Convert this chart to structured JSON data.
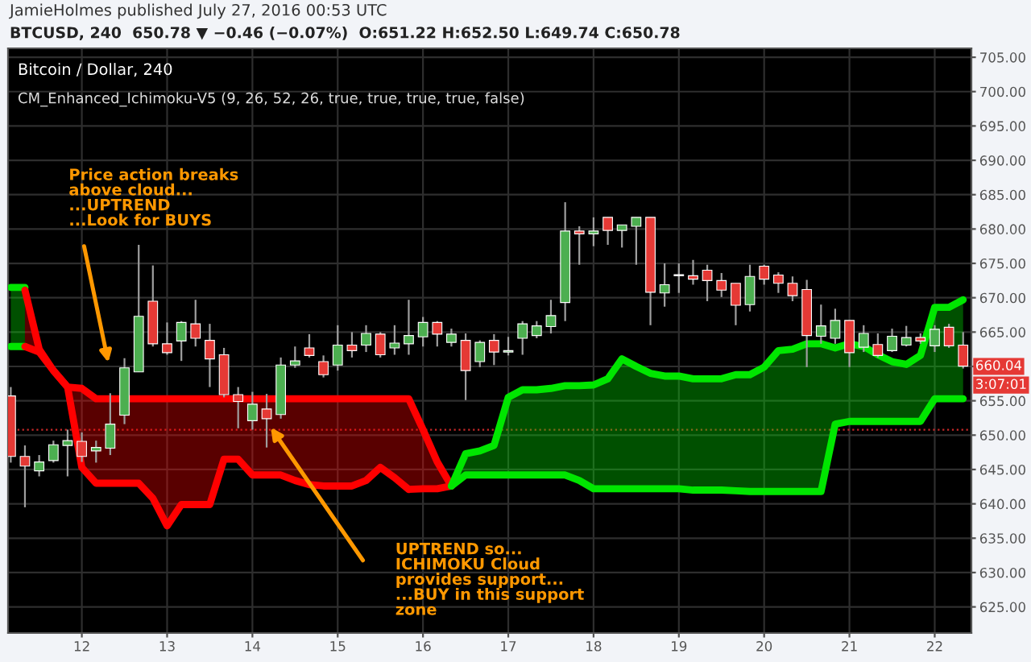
{
  "chart_data": {
    "type": "candlestick",
    "title": "Bitcoin / Dollar, 240",
    "subtitle": "CM_Enhanced_Ichimoku-V5 (9, 26, 52, 26, true, true, true, true, false)",
    "x": [
      11.167,
      11.333,
      11.5,
      11.667,
      11.833,
      12,
      12.167,
      12.333,
      12.5,
      12.667,
      12.833,
      13,
      13.167,
      13.333,
      13.5,
      13.667,
      13.833,
      14,
      14.167,
      14.333,
      14.5,
      14.667,
      14.833,
      15,
      15.167,
      15.333,
      15.5,
      15.667,
      15.833,
      16,
      16.167,
      16.333,
      16.5,
      16.667,
      16.833,
      17,
      17.167,
      17.333,
      17.5,
      17.667,
      17.833,
      18,
      18.167,
      18.333,
      18.5,
      18.667,
      18.833,
      19,
      19.167,
      19.333,
      19.5,
      19.667,
      19.833,
      20,
      20.167,
      20.333,
      20.5,
      20.667,
      20.833,
      21,
      21.167,
      21.333,
      21.5,
      21.667,
      21.833,
      22,
      22.167,
      22.333
    ],
    "ohlc": [
      [
        655.7,
        657.0,
        646.0,
        646.9
      ],
      [
        646.9,
        648.5,
        639.5,
        645.5
      ],
      [
        644.8,
        647.1,
        644.0,
        646.1
      ],
      [
        646.3,
        649.2,
        646.0,
        648.6
      ],
      [
        648.5,
        650.8,
        644.0,
        649.2
      ],
      [
        649.1,
        650.4,
        646.1,
        646.9
      ],
      [
        647.7,
        649.2,
        646.0,
        648.2
      ],
      [
        648.1,
        656.1,
        647.1,
        651.6
      ],
      [
        652.9,
        661.2,
        651.6,
        659.8
      ],
      [
        659.2,
        677.7,
        659.2,
        667.3
      ],
      [
        669.5,
        674.7,
        662.9,
        663.3
      ],
      [
        663.3,
        666.4,
        661.7,
        662.0
      ],
      [
        663.7,
        666.6,
        660.8,
        666.4
      ],
      [
        666.2,
        669.7,
        662.9,
        664.1
      ],
      [
        663.8,
        666.2,
        657.0,
        661.1
      ],
      [
        661.7,
        662.7,
        655.5,
        655.9
      ],
      [
        655.9,
        657.0,
        651.0,
        654.9
      ],
      [
        652.1,
        656.3,
        650.8,
        654.5
      ],
      [
        653.8,
        656.0,
        648.2,
        652.4
      ],
      [
        653.0,
        661.3,
        652.4,
        660.2
      ],
      [
        660.2,
        662.9,
        659.8,
        660.8
      ],
      [
        662.7,
        664.7,
        661.3,
        661.6
      ],
      [
        660.7,
        661.6,
        658.4,
        658.8
      ],
      [
        660.2,
        666.0,
        659.4,
        663.1
      ],
      [
        663.1,
        665.0,
        661.3,
        662.3
      ],
      [
        663.1,
        666.0,
        662.1,
        664.8
      ],
      [
        664.7,
        665.0,
        661.3,
        661.7
      ],
      [
        662.7,
        666.0,
        661.7,
        663.4
      ],
      [
        663.3,
        669.7,
        661.7,
        664.5
      ],
      [
        664.3,
        667.2,
        662.9,
        666.4
      ],
      [
        666.4,
        666.6,
        662.9,
        664.7
      ],
      [
        663.5,
        665.5,
        662.9,
        664.7
      ],
      [
        663.8,
        664.8,
        655.1,
        659.4
      ],
      [
        660.7,
        663.8,
        659.9,
        663.5
      ],
      [
        663.8,
        664.7,
        660.2,
        662.1
      ],
      [
        662.1,
        664.3,
        661.6,
        662.3
      ],
      [
        664.1,
        666.6,
        661.7,
        666.2
      ],
      [
        664.5,
        666.6,
        664.1,
        665.9
      ],
      [
        665.8,
        669.7,
        664.8,
        667.4
      ],
      [
        669.3,
        683.9,
        666.6,
        679.7
      ],
      [
        679.7,
        680.4,
        674.8,
        679.3
      ],
      [
        679.3,
        681.7,
        677.5,
        679.7
      ],
      [
        681.7,
        681.7,
        677.7,
        679.8
      ],
      [
        679.8,
        680.6,
        677.3,
        680.6
      ],
      [
        680.4,
        681.7,
        674.8,
        681.7
      ],
      [
        681.7,
        681.7,
        666.0,
        670.8
      ],
      [
        670.7,
        675.0,
        668.7,
        671.9
      ],
      [
        673.2,
        675.0,
        670.7,
        673.3
      ],
      [
        673.2,
        675.5,
        671.9,
        672.7
      ],
      [
        674.0,
        674.8,
        669.5,
        672.5
      ],
      [
        672.5,
        673.6,
        670.1,
        671.1
      ],
      [
        672.1,
        672.1,
        666.0,
        668.9
      ],
      [
        669.0,
        674.8,
        668.0,
        673.1
      ],
      [
        674.6,
        674.8,
        671.9,
        672.7
      ],
      [
        673.3,
        673.7,
        670.7,
        672.1
      ],
      [
        672.1,
        673.1,
        669.5,
        670.3
      ],
      [
        671.2,
        672.6,
        659.9,
        664.5
      ],
      [
        664.4,
        669.0,
        663.3,
        665.9
      ],
      [
        664.1,
        668.4,
        663.3,
        666.7
      ],
      [
        666.7,
        666.7,
        659.9,
        662.0
      ],
      [
        662.8,
        666.0,
        662.1,
        664.8
      ],
      [
        663.2,
        664.8,
        661.3,
        661.6
      ],
      [
        662.3,
        665.5,
        662.1,
        664.4
      ],
      [
        663.1,
        665.9,
        662.9,
        664.2
      ],
      [
        664.2,
        664.8,
        663.3,
        663.7
      ],
      [
        663.0,
        666.0,
        662.1,
        665.4
      ],
      [
        665.7,
        666.2,
        662.7,
        663.0
      ],
      [
        663.1,
        665.0,
        659.7,
        660.04
      ]
    ],
    "colors": [
      "#e53935",
      "#e53935",
      "#4caf50",
      "#4caf50",
      "#4caf50",
      "#e53935",
      "#4caf50",
      "#4caf50",
      "#4caf50",
      "#4caf50",
      "#e53935",
      "#e53935",
      "#4caf50",
      "#e53935",
      "#e53935",
      "#e53935",
      "#e53935",
      "#4caf50",
      "#e53935",
      "#4caf50",
      "#4caf50",
      "#e53935",
      "#e53935",
      "#4caf50",
      "#e53935",
      "#4caf50",
      "#e53935",
      "#4caf50",
      "#4caf50",
      "#4caf50",
      "#e53935",
      "#4caf50",
      "#e53935",
      "#4caf50",
      "#e53935",
      "#4caf50",
      "#4caf50",
      "#4caf50",
      "#4caf50",
      "#4caf50",
      "#e53935",
      "#4caf50",
      "#e53935",
      "#4caf50",
      "#4caf50",
      "#e53935",
      "#4caf50",
      "#4caf50",
      "#e53935",
      "#e53935",
      "#e53935",
      "#e53935",
      "#4caf50",
      "#e53935",
      "#e53935",
      "#e53935",
      "#e53935",
      "#4caf50",
      "#4caf50",
      "#e53935",
      "#4caf50",
      "#e53935",
      "#4caf50",
      "#4caf50",
      "#e53935",
      "#4caf50",
      "#e53935",
      "#e53935"
    ],
    "series": [
      {
        "type": "line",
        "color": "#00e600",
        "x": [
          11.167,
          11.333
        ],
        "values": [
          671.5,
          671.5
        ],
        "lower": [
          662.9,
          662.9
        ],
        "upper": [
          671.5,
          671.5
        ]
      },
      {
        "type": "line",
        "color": "#ff0000",
        "x": [
          11.333,
          11.5,
          11.667,
          11.833,
          12,
          12.167,
          12.333,
          12.5,
          12.667,
          12.833,
          13,
          13.167,
          13.333,
          13.5,
          13.667,
          13.833,
          14,
          14.167,
          14.333,
          14.5,
          14.667,
          14.833,
          15,
          15.167,
          15.333,
          15.5,
          15.667,
          15.833,
          16,
          16.167,
          16.333
        ],
        "values": [
          671.1,
          662.5,
          659.4,
          657.0,
          656.8,
          655.3,
          655.3,
          655.3,
          655.3,
          655.3,
          655.3,
          655.3,
          655.3,
          655.3,
          655.3,
          655.3,
          655.3,
          655.3,
          655.3,
          655.3,
          655.3,
          655.3,
          655.3,
          655.3,
          655.3,
          655.3,
          655.3,
          655.3,
          650.8,
          646.1,
          642.6
        ],
        "lower": [
          662.9,
          662.1,
          659.4,
          657.0,
          645.3,
          643.0,
          643.0,
          643.0,
          643.0,
          640.8,
          636.8,
          639.9,
          639.9,
          639.9,
          646.5,
          646.5,
          644.2,
          644.2,
          644.2,
          643.4,
          642.8,
          642.6,
          642.6,
          642.6,
          643.4,
          645.3,
          643.8,
          642.1,
          642.2,
          642.2,
          642.6
        ],
        "upper": [
          671.1,
          662.5,
          659.4,
          657.0,
          656.8,
          655.3,
          655.3,
          655.3,
          655.3,
          655.3,
          655.3,
          655.3,
          655.3,
          655.3,
          655.3,
          655.3,
          655.3,
          655.3,
          655.3,
          655.3,
          655.3,
          655.3,
          655.3,
          655.3,
          655.3,
          655.3,
          655.3,
          655.3,
          650.8,
          646.1,
          642.6
        ]
      },
      {
        "type": "line",
        "color": "#00e600",
        "x": [
          11.167,
          11.333
        ],
        "values": [
          662.9,
          662.9
        ]
      },
      {
        "type": "line",
        "color": "#ff0000",
        "x": [
          11.333,
          11.5,
          11.667,
          11.833,
          12,
          12.167,
          12.333,
          12.5,
          12.667,
          12.833,
          13,
          13.167,
          13.333,
          13.5,
          13.667,
          13.833,
          14,
          14.167,
          14.333,
          14.5,
          14.667,
          14.833,
          15,
          15.167,
          15.333,
          15.5,
          15.667,
          15.833,
          16,
          16.167,
          16.333
        ],
        "values": [
          662.9,
          662.1,
          659.4,
          657.0,
          645.3,
          643.0,
          643.0,
          643.0,
          643.0,
          640.8,
          636.8,
          639.9,
          639.9,
          639.9,
          646.5,
          646.5,
          644.2,
          644.2,
          644.2,
          643.4,
          642.8,
          642.6,
          642.6,
          642.6,
          643.4,
          645.3,
          643.8,
          642.1,
          642.2,
          642.2,
          642.6
        ]
      },
      {
        "type": "line",
        "color": "#00e600",
        "x": [
          16.333,
          16.5,
          16.667,
          16.833,
          17,
          17.167,
          17.333,
          17.5,
          17.667,
          17.833,
          18,
          18.167,
          18.333,
          18.5,
          18.667,
          18.833,
          19,
          19.167,
          19.333,
          19.5,
          19.667,
          19.833,
          20,
          20.167,
          20.333,
          20.5,
          20.667,
          20.833,
          21,
          21.167,
          21.333,
          21.5,
          21.667,
          21.833,
          22,
          22.167,
          22.333
        ],
        "values": [
          642.6,
          644.2,
          644.2,
          644.2,
          644.2,
          644.2,
          644.2,
          644.2,
          644.2,
          643.4,
          642.2,
          642.2,
          642.2,
          642.2,
          642.2,
          642.2,
          642.2,
          642.0,
          642.0,
          642.0,
          641.9,
          641.8,
          641.8,
          641.8,
          641.8,
          641.8,
          641.8,
          651.6,
          652.0,
          652.0,
          652.0,
          652.0,
          652.0,
          652.0,
          655.3,
          655.3,
          655.3
        ]
      },
      {
        "type": "line",
        "color": "#00e600",
        "x": [
          16.333,
          16.5,
          16.667,
          16.833,
          17,
          17.167,
          17.333,
          17.5,
          17.667,
          17.833,
          18,
          18.167,
          18.333,
          18.5,
          18.667,
          18.833,
          19,
          19.167,
          19.333,
          19.5,
          19.667,
          19.833,
          20,
          20.167,
          20.333,
          20.5,
          20.667,
          20.833,
          21,
          21.167,
          21.333,
          21.5,
          21.667,
          21.833,
          22,
          22.167,
          22.333
        ],
        "values": [
          642.6,
          647.3,
          647.7,
          648.5,
          655.5,
          656.6,
          656.6,
          656.8,
          657.2,
          657.2,
          657.3,
          658.2,
          661.1,
          660.0,
          659.0,
          658.6,
          658.6,
          658.2,
          658.2,
          658.2,
          658.8,
          658.8,
          659.9,
          662.3,
          662.5,
          663.3,
          663.3,
          662.7,
          663.3,
          662.9,
          661.7,
          660.7,
          660.3,
          661.6,
          668.6,
          668.6,
          669.7
        ],
        "lower": [
          642.6,
          644.2,
          644.2,
          644.2,
          644.2,
          644.2,
          644.2,
          644.2,
          644.2,
          643.4,
          642.2,
          642.2,
          642.2,
          642.2,
          642.2,
          642.2,
          642.2,
          642.0,
          642.0,
          642.0,
          641.9,
          641.8,
          641.8,
          641.8,
          641.8,
          641.8,
          641.8,
          651.6,
          652.0,
          652.0,
          652.0,
          652.0,
          652.0,
          652.0,
          655.3,
          655.3,
          655.3
        ],
        "upper": [
          642.6,
          647.3,
          647.7,
          648.5,
          655.5,
          656.6,
          656.6,
          656.8,
          657.2,
          657.2,
          657.3,
          658.2,
          661.1,
          660.0,
          659.0,
          658.6,
          658.6,
          658.2,
          658.2,
          658.2,
          658.8,
          658.8,
          659.9,
          662.3,
          662.5,
          663.3,
          663.3,
          662.7,
          663.3,
          662.9,
          661.7,
          660.7,
          660.3,
          661.6,
          668.6,
          668.6,
          669.7
        ]
      }
    ],
    "xlim": [
      11.135,
      22.43
    ],
    "ylim": [
      621.2,
      706.3
    ],
    "xticks": [
      12,
      13,
      14,
      15,
      16,
      17,
      18,
      19,
      20,
      21,
      22
    ],
    "yticks": [
      {
        "value": 625,
        "label": "625.00"
      },
      {
        "value": 630,
        "label": "630.00"
      },
      {
        "value": 635,
        "label": "635.00"
      },
      {
        "value": 640,
        "label": "640.00"
      },
      {
        "value": 645,
        "label": "645.00"
      },
      {
        "value": 650,
        "label": "650.00"
      },
      {
        "value": 655,
        "label": "655.00"
      },
      {
        "value": 660,
        "label": null
      },
      {
        "value": 665,
        "label": "665.00"
      },
      {
        "value": 670,
        "label": "670.00"
      },
      {
        "value": 675,
        "label": "675.00"
      },
      {
        "value": 680,
        "label": "680.00"
      },
      {
        "value": 685,
        "label": "685.00"
      },
      {
        "value": 690,
        "label": "690.00"
      },
      {
        "value": 695,
        "label": "695.00"
      },
      {
        "value": 700,
        "label": "700.00"
      },
      {
        "value": 705,
        "label": "705.00"
      }
    ],
    "grid": true,
    "ref_lines": [
      {
        "axis": "y",
        "value": 650.78,
        "color": "#c62828",
        "line_style": "dotted"
      }
    ],
    "annotations": [
      "JamieHolmes published July 27, 2016 00:53 UTC",
      "BTCUSD, 240  650.78 ▼ −0.46 (−0.07%)  O:651.22 H:652.50 L:649.74 C:650.78",
      "Price action breaks\nabove cloud...\n...UPTREND\n...Look for BUYS",
      "UPTREND so...\nICHIMOKU Cloud\nprovides support...\n...BUY in this support\nzone",
      "660.04",
      "3:07:01"
    ]
  }
}
